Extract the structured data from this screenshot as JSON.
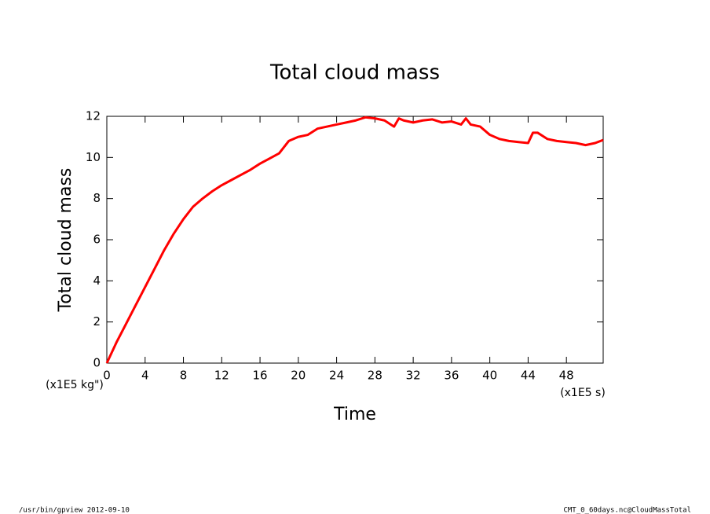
{
  "chart_data": {
    "type": "line",
    "title": "Total cloud mass",
    "y_label": "Total cloud mass",
    "x_label": "Time",
    "y_unit": "(x1E5 kg\")",
    "x_unit": "(x1E5 s)",
    "footer_left": "/usr/bin/gpview  2012-09-10",
    "footer_right": "CMT_0_60days.nc@CloudMassTotal",
    "x": [
      0,
      1,
      2,
      3,
      4,
      5,
      6,
      7,
      8,
      9,
      10,
      11,
      12,
      13,
      14,
      15,
      16,
      17,
      18,
      19,
      20,
      21,
      22,
      23,
      24,
      25,
      26,
      27,
      28,
      29,
      30,
      30.5,
      31,
      32,
      33,
      34,
      35,
      36,
      37,
      37.5,
      38,
      39,
      40,
      41,
      42,
      43,
      44,
      44.5,
      45,
      46,
      47,
      48,
      49,
      50,
      51,
      51.84
    ],
    "series": [
      {
        "name": "Total cloud mass",
        "color": "#ff0000",
        "values": [
          0,
          1.0,
          1.9,
          2.8,
          3.7,
          4.6,
          5.5,
          6.3,
          7.0,
          7.6,
          8.0,
          8.35,
          8.65,
          8.9,
          9.15,
          9.4,
          9.7,
          9.95,
          10.2,
          10.8,
          11.0,
          11.1,
          11.4,
          11.5,
          11.6,
          11.7,
          11.8,
          11.95,
          11.9,
          11.8,
          11.5,
          11.9,
          11.8,
          11.7,
          11.8,
          11.85,
          11.7,
          11.75,
          11.6,
          11.9,
          11.6,
          11.5,
          11.1,
          10.9,
          10.8,
          10.75,
          10.7,
          11.2,
          11.2,
          10.9,
          10.8,
          10.75,
          10.7,
          10.6,
          10.7,
          10.85
        ]
      }
    ],
    "xlim": [
      0,
      51.84
    ],
    "ylim": [
      0,
      12
    ],
    "xticks": [
      0,
      4,
      8,
      12,
      16,
      20,
      24,
      28,
      32,
      36,
      40,
      44,
      48
    ],
    "yticks": [
      0,
      2,
      4,
      6,
      8,
      10,
      12
    ]
  }
}
